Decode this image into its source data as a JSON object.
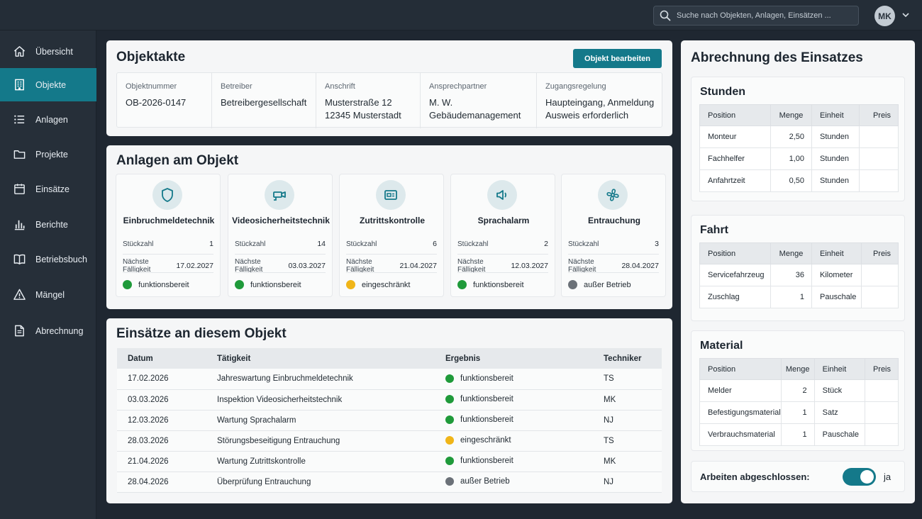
{
  "search": {
    "placeholder": "Suche nach Objekten, Anlagen, Einsätzen ..."
  },
  "user": {
    "initials": "MK"
  },
  "nav": [
    {
      "label": "Übersicht",
      "icon": "home-icon",
      "active": false
    },
    {
      "label": "Objekte",
      "icon": "building-icon",
      "active": true
    },
    {
      "label": "Anlagen",
      "icon": "list-icon",
      "active": false
    },
    {
      "label": "Projekte",
      "icon": "folder-icon",
      "active": false
    },
    {
      "label": "Einsätze",
      "icon": "calendar-icon",
      "active": false
    },
    {
      "label": "Berichte",
      "icon": "bar-chart-icon",
      "active": false
    },
    {
      "label": "Betriebsbuch",
      "icon": "book-icon",
      "active": false
    },
    {
      "label": "Mängel",
      "icon": "warning-icon",
      "active": false
    },
    {
      "label": "Abrechnung",
      "icon": "document-icon",
      "active": false
    }
  ],
  "objektakte": {
    "title": "Objektakte",
    "edit_button": "Objekt bearbeiten",
    "fields": [
      {
        "label": "Objektnummer",
        "value": "OB-2026-0147"
      },
      {
        "label": "Betreiber",
        "value": "Betreibergesellschaft"
      },
      {
        "label": "Anschrift",
        "value": "Musterstraße 12\n12345 Musterstadt"
      },
      {
        "label": "Ansprechpartner",
        "value": "M. W.\nGebäudemanagement"
      },
      {
        "label": "Zugangsregelung",
        "value": "Haupteingang, Anmeldung\nAusweis erforderlich"
      }
    ]
  },
  "anlagen": {
    "title": "Anlagen am Objekt",
    "stueckzahl_label": "Stückzahl",
    "faelligkeit_label": "Nächste Fälligkeit",
    "items": [
      {
        "name": "Einbruchmeldetechnik",
        "icon": "shield-icon",
        "count": "1",
        "due": "17.02.2027",
        "status": "funktionsbereit",
        "status_color": "#1f9a3a"
      },
      {
        "name": "Videosicherheitstechnik",
        "icon": "camera-icon",
        "count": "14",
        "due": "03.03.2027",
        "status": "funktionsbereit",
        "status_color": "#1f9a3a"
      },
      {
        "name": "Zutrittskontrolle",
        "icon": "card-reader-icon",
        "count": "6",
        "due": "21.04.2027",
        "status": "eingeschränkt",
        "status_color": "#f0b518"
      },
      {
        "name": "Sprachalarm",
        "icon": "speaker-icon",
        "count": "2",
        "due": "12.03.2027",
        "status": "funktionsbereit",
        "status_color": "#1f9a3a"
      },
      {
        "name": "Entrauchung",
        "icon": "fan-icon",
        "count": "3",
        "due": "28.04.2027",
        "status": "außer Betrieb",
        "status_color": "#6b7178"
      }
    ]
  },
  "einsaetze": {
    "title": "Einsätze an diesem Objekt",
    "columns": [
      "Datum",
      "Tätigkeit",
      "Ergebnis",
      "Techniker"
    ],
    "rows": [
      {
        "datum": "17.02.2026",
        "taetigkeit": "Jahreswartung Einbruchmeldetechnik",
        "ergebnis": "funktionsbereit",
        "color": "#1f9a3a",
        "techniker": "TS"
      },
      {
        "datum": "03.03.2026",
        "taetigkeit": "Inspektion Videosicherheitstechnik",
        "ergebnis": "funktionsbereit",
        "color": "#1f9a3a",
        "techniker": "MK"
      },
      {
        "datum": "12.03.2026",
        "taetigkeit": "Wartung Sprachalarm",
        "ergebnis": "funktionsbereit",
        "color": "#1f9a3a",
        "techniker": "NJ"
      },
      {
        "datum": "28.03.2026",
        "taetigkeit": "Störungsbeseitigung Entrauchung",
        "ergebnis": "eingeschränkt",
        "color": "#f0b518",
        "techniker": "TS"
      },
      {
        "datum": "21.04.2026",
        "taetigkeit": "Wartung Zutrittskontrolle",
        "ergebnis": "funktionsbereit",
        "color": "#1f9a3a",
        "techniker": "MK"
      },
      {
        "datum": "28.04.2026",
        "taetigkeit": "Überprüfung Entrauchung",
        "ergebnis": "außer Betrieb",
        "color": "#6b7178",
        "techniker": "NJ"
      }
    ]
  },
  "abrechnung": {
    "title": "Abrechnung des Einsatzes",
    "columns": [
      "Position",
      "Menge",
      "Einheit",
      "Preis"
    ],
    "stunden": {
      "title": "Stunden",
      "rows": [
        {
          "position": "Monteur",
          "menge": "2,50",
          "einheit": "Stunden",
          "preis": ""
        },
        {
          "position": "Fachhelfer",
          "menge": "1,00",
          "einheit": "Stunden",
          "preis": ""
        },
        {
          "position": "Anfahrtzeit",
          "menge": "0,50",
          "einheit": "Stunden",
          "preis": ""
        }
      ]
    },
    "fahrt": {
      "title": "Fahrt",
      "rows": [
        {
          "position": "Servicefahrzeug",
          "menge": "36",
          "einheit": "Kilometer",
          "preis": ""
        },
        {
          "position": "Zuschlag",
          "menge": "1",
          "einheit": "Pauschale",
          "preis": ""
        }
      ]
    },
    "material": {
      "title": "Material",
      "rows": [
        {
          "position": "Melder",
          "menge": "2",
          "einheit": "Stück",
          "preis": ""
        },
        {
          "position": "Befestigungsmaterial",
          "menge": "1",
          "einheit": "Satz",
          "preis": ""
        },
        {
          "position": "Verbrauchsmaterial",
          "menge": "1",
          "einheit": "Pauschale",
          "preis": ""
        }
      ]
    },
    "done_label": "Arbeiten abgeschlossen:",
    "done_value": "ja",
    "done_on": true
  },
  "colors": {
    "accent": "#14798a",
    "ok": "#1f9a3a",
    "warn": "#f0b518",
    "off": "#6b7178"
  }
}
